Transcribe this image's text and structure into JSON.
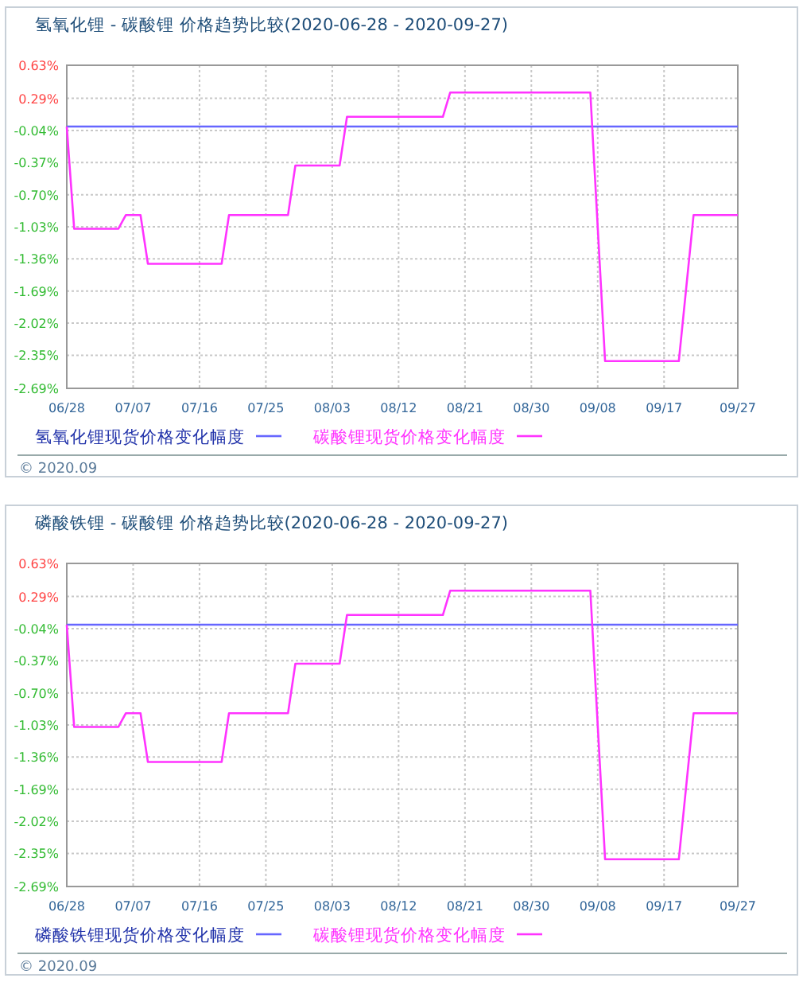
{
  "chart_data": [
    {
      "type": "line",
      "title": "氢氧化锂 - 碳酸锂 价格趋势比较(2020-06-28 - 2020-09-27)",
      "series": [
        {
          "name": "氢氧化锂现货价格变化幅度",
          "color": "#6666ff",
          "x": [
            "2020-06-28",
            "2020-09-27"
          ],
          "values": [
            0,
            0
          ]
        },
        {
          "name": "碳酸锂现货价格变化幅度",
          "color": "#ff33ff",
          "x": [
            "2020-06-28",
            "2020-06-29",
            "2020-07-05",
            "2020-07-06",
            "2020-07-08",
            "2020-07-09",
            "2020-07-19",
            "2020-07-20",
            "2020-07-28",
            "2020-07-29",
            "2020-08-04",
            "2020-08-05",
            "2020-08-18",
            "2020-08-19",
            "2020-09-07",
            "2020-09-09",
            "2020-09-19",
            "2020-09-21",
            "2020-09-27"
          ],
          "values": [
            0,
            -1.05,
            -1.05,
            -0.91,
            -0.91,
            -1.41,
            -1.41,
            -0.91,
            -0.91,
            -0.4,
            -0.4,
            0.1,
            0.1,
            0.35,
            0.35,
            -2.41,
            -2.41,
            -0.91,
            -0.91
          ]
        }
      ],
      "xlim": [
        "2020-06-28",
        "2020-09-27"
      ],
      "xticks": [
        {
          "value": "2020-06-28",
          "label": "06/28"
        },
        {
          "value": "2020-07-07",
          "label": "07/07"
        },
        {
          "value": "2020-07-16",
          "label": "07/16"
        },
        {
          "value": "2020-07-25",
          "label": "07/25"
        },
        {
          "value": "2020-08-03",
          "label": "08/03"
        },
        {
          "value": "2020-08-12",
          "label": "08/12"
        },
        {
          "value": "2020-08-21",
          "label": "08/21"
        },
        {
          "value": "2020-08-30",
          "label": "08/30"
        },
        {
          "value": "2020-09-08",
          "label": "09/08"
        },
        {
          "value": "2020-09-17",
          "label": "09/17"
        },
        {
          "value": "2020-09-27",
          "label": "09/27"
        }
      ],
      "ylim": [
        -2.69,
        0.63
      ],
      "yticks": [
        {
          "value": 0.63,
          "label": "0.63%"
        },
        {
          "value": 0.29,
          "label": "0.29%"
        },
        {
          "value": -0.04,
          "label": "-0.04%"
        },
        {
          "value": -0.37,
          "label": "-0.37%"
        },
        {
          "value": -0.7,
          "label": "-0.70%"
        },
        {
          "value": -1.03,
          "label": "-1.03%"
        },
        {
          "value": -1.36,
          "label": "-1.36%"
        },
        {
          "value": -1.69,
          "label": "-1.69%"
        },
        {
          "value": -2.02,
          "label": "-2.02%"
        },
        {
          "value": -2.35,
          "label": "-2.35%"
        },
        {
          "value": -2.69,
          "label": "-2.69%"
        }
      ],
      "grid": true,
      "legend": "bottom",
      "annotations": [
        "© 2020.09"
      ]
    },
    {
      "type": "line",
      "title": "磷酸铁锂 - 碳酸锂 价格趋势比较(2020-06-28 - 2020-09-27)",
      "series": [
        {
          "name": "磷酸铁锂现货价格变化幅度",
          "color": "#6666ff",
          "x": [
            "2020-06-28",
            "2020-09-27"
          ],
          "values": [
            0,
            0
          ]
        },
        {
          "name": "碳酸锂现货价格变化幅度",
          "color": "#ff33ff",
          "x": [
            "2020-06-28",
            "2020-06-29",
            "2020-07-05",
            "2020-07-06",
            "2020-07-08",
            "2020-07-09",
            "2020-07-19",
            "2020-07-20",
            "2020-07-28",
            "2020-07-29",
            "2020-08-04",
            "2020-08-05",
            "2020-08-18",
            "2020-08-19",
            "2020-09-07",
            "2020-09-09",
            "2020-09-19",
            "2020-09-21",
            "2020-09-27"
          ],
          "values": [
            0,
            -1.05,
            -1.05,
            -0.91,
            -0.91,
            -1.41,
            -1.41,
            -0.91,
            -0.91,
            -0.4,
            -0.4,
            0.1,
            0.1,
            0.35,
            0.35,
            -2.41,
            -2.41,
            -0.91,
            -0.91
          ]
        }
      ],
      "xlim": [
        "2020-06-28",
        "2020-09-27"
      ],
      "xticks": [
        {
          "value": "2020-06-28",
          "label": "06/28"
        },
        {
          "value": "2020-07-07",
          "label": "07/07"
        },
        {
          "value": "2020-07-16",
          "label": "07/16"
        },
        {
          "value": "2020-07-25",
          "label": "07/25"
        },
        {
          "value": "2020-08-03",
          "label": "08/03"
        },
        {
          "value": "2020-08-12",
          "label": "08/12"
        },
        {
          "value": "2020-08-21",
          "label": "08/21"
        },
        {
          "value": "2020-08-30",
          "label": "08/30"
        },
        {
          "value": "2020-09-08",
          "label": "09/08"
        },
        {
          "value": "2020-09-17",
          "label": "09/17"
        },
        {
          "value": "2020-09-27",
          "label": "09/27"
        }
      ],
      "ylim": [
        -2.69,
        0.63
      ],
      "yticks": [
        {
          "value": 0.63,
          "label": "0.63%"
        },
        {
          "value": 0.29,
          "label": "0.29%"
        },
        {
          "value": -0.04,
          "label": "-0.04%"
        },
        {
          "value": -0.37,
          "label": "-0.37%"
        },
        {
          "value": -0.7,
          "label": "-0.70%"
        },
        {
          "value": -1.03,
          "label": "-1.03%"
        },
        {
          "value": -1.36,
          "label": "-1.36%"
        },
        {
          "value": -1.69,
          "label": "-1.69%"
        },
        {
          "value": -2.02,
          "label": "-2.02%"
        },
        {
          "value": -2.35,
          "label": "-2.35%"
        },
        {
          "value": -2.69,
          "label": "-2.69%"
        }
      ],
      "grid": true,
      "legend": "bottom",
      "annotations": [
        "© 2020.09"
      ]
    }
  ]
}
